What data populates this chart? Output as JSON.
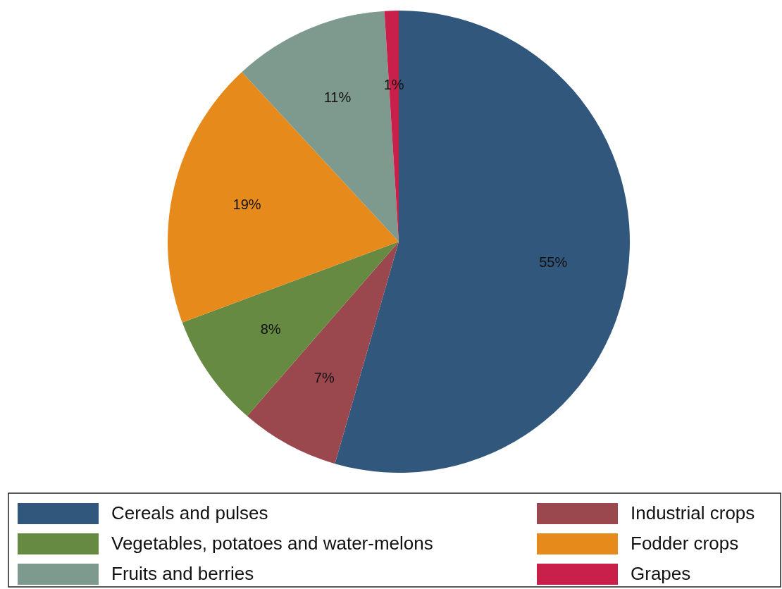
{
  "chart_data": {
    "type": "pie",
    "categories": [
      "Cereals and pulses",
      "Industrial crops",
      "Vegetables, potatoes and water-melons",
      "Fodder crops",
      "Fruits and berries",
      "Grapes"
    ],
    "values": [
      55,
      7,
      8,
      19,
      11,
      1
    ],
    "colors": [
      "#31587c",
      "#9b474e",
      "#668a42",
      "#e58a1b",
      "#7e9a8f",
      "#c8204a"
    ],
    "value_labels": [
      "55%",
      "7%",
      "8%",
      "19%",
      "11%",
      "1%"
    ],
    "legend": "bottom"
  }
}
